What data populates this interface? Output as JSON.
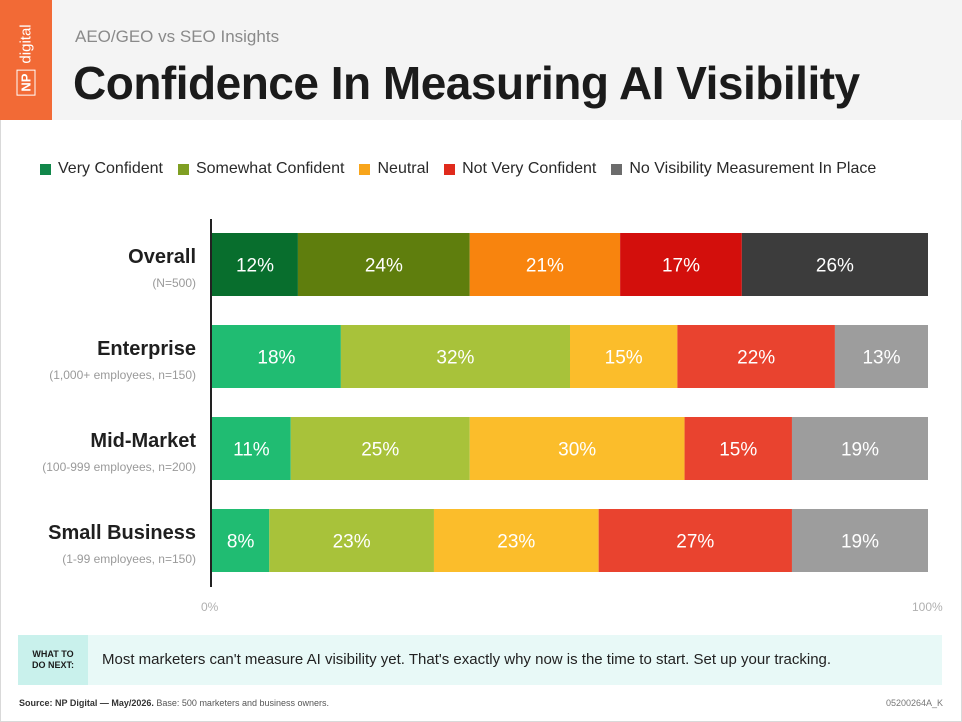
{
  "header": {
    "logo_text": "digital",
    "logo_badge": "NP",
    "kicker": "AEO/GEO vs SEO Insights",
    "title": "Confidence In Measuring AI Visibility"
  },
  "legend": [
    {
      "label": "Very Confident",
      "color": "#11874a"
    },
    {
      "label": "Somewhat Confident",
      "color": "#7f9f23"
    },
    {
      "label": "Neutral",
      "color": "#f8a51b"
    },
    {
      "label": "Not Very Confident",
      "color": "#e02a1c"
    },
    {
      "label": "No Visibility Measurement In Place",
      "color": "#6c6c6c"
    }
  ],
  "rows": [
    {
      "name": "Overall",
      "sub": "(N=500)"
    },
    {
      "name": "Enterprise",
      "sub": "(1,000+ employees, n=150)"
    },
    {
      "name": "Mid-Market",
      "sub": "(100-999 employees, n=200)"
    },
    {
      "name": "Small Business",
      "sub": "(1-99 employees, n=150)"
    }
  ],
  "chart_data": {
    "type": "bar",
    "orientation": "horizontal-stacked",
    "categories": [
      "Overall",
      "Enterprise",
      "Mid-Market",
      "Small Business"
    ],
    "series": [
      {
        "name": "Very Confident",
        "values": [
          12,
          18,
          11,
          8
        ],
        "labels": [
          "12%",
          "18%",
          "11%",
          "8%"
        ]
      },
      {
        "name": "Somewhat Confident",
        "values": [
          24,
          32,
          25,
          23
        ],
        "labels": [
          "24%",
          "32%",
          "25%",
          "23%"
        ]
      },
      {
        "name": "Neutral",
        "values": [
          21,
          15,
          30,
          23
        ],
        "labels": [
          "21%",
          "15%",
          "30%",
          "23%"
        ]
      },
      {
        "name": "Not Very Confident",
        "values": [
          17,
          22,
          15,
          27
        ],
        "labels": [
          "17%",
          "22%",
          "15%",
          "27%"
        ]
      },
      {
        "name": "No Visibility Measurement In Place",
        "values": [
          26,
          13,
          19,
          19
        ],
        "labels": [
          "26%",
          "13%",
          "19%",
          "19%"
        ]
      }
    ],
    "colors_highlight": [
      "#086e2d",
      "#5f7e0d",
      "#f8840e",
      "#d30f0c",
      "#3c3c3c"
    ],
    "colors_normal": [
      "#20bc72",
      "#a8c23a",
      "#fbbd2b",
      "#e9432f",
      "#9d9d9d"
    ],
    "xlim": [
      0,
      100
    ],
    "x_tick_labels": [
      "0%",
      "100%"
    ],
    "grid": false,
    "legend_position": "top"
  },
  "callout": {
    "tag": "WHAT TO DO NEXT:",
    "text": "Most marketers can't measure AI visibility yet. That's exactly why now is the time to start. Set up your tracking."
  },
  "footer": {
    "source_label": "Source: NP Digital — May/2026.",
    "source_text": "Base: 500 marketers and business owners.",
    "code": "05200264A_K"
  }
}
